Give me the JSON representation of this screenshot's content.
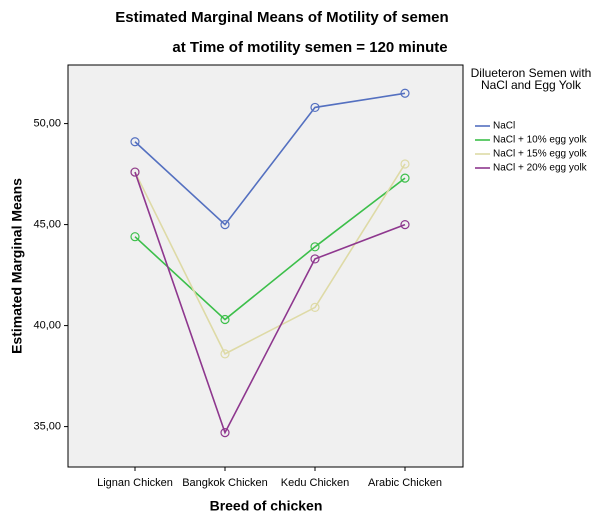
{
  "chart_data": {
    "type": "line",
    "title": "Estimated Marginal Means of Motility of semen",
    "subtitle": "at Time of motility semen = 120 minute",
    "x_label": "Breed of chicken",
    "y_label": "Estimated Marginal Means",
    "legend_title": "Dilueteron Semen with NaCl and Egg Yolk",
    "categories": [
      "Lignan Chicken",
      "Bangkok Chicken",
      "Kedu Chicken",
      "Arabic Chicken"
    ],
    "series": [
      {
        "name": "NaCl",
        "color": "#5470c0",
        "values": [
          49.1,
          45.0,
          50.8,
          51.5
        ]
      },
      {
        "name": "NaCl + 10% egg yolk",
        "color": "#3cbf4a",
        "values": [
          44.4,
          40.3,
          43.9,
          47.3
        ]
      },
      {
        "name": "NaCl + 15% egg yolk",
        "color": "#dedaa6",
        "values": [
          47.6,
          38.6,
          40.9,
          48.0
        ]
      },
      {
        "name": "NaCl + 20% egg yolk",
        "color": "#8e378e",
        "values": [
          47.6,
          34.7,
          43.3,
          45.0
        ]
      }
    ],
    "ylim": [
      33.0,
      52.9
    ],
    "yticks": [
      {
        "value": 35,
        "label": "35,00"
      },
      {
        "value": 40,
        "label": "40,00"
      },
      {
        "value": 45,
        "label": "45,00"
      },
      {
        "value": 50,
        "label": "50,00"
      }
    ],
    "legend_position": "right"
  }
}
